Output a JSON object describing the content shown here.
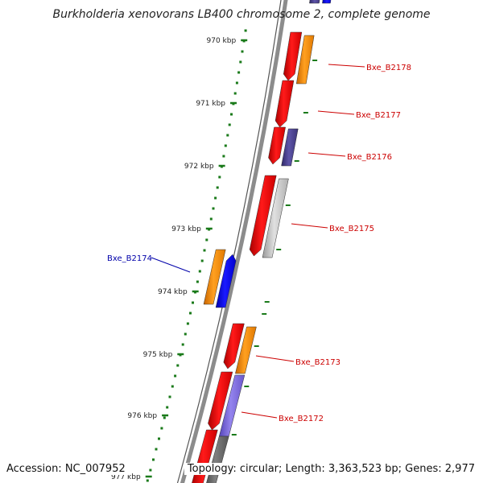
{
  "title": "Burkholderia xenovorans LB400 chromosome 2, complete genome",
  "footer": {
    "accession": "Accession: NC_007952",
    "topology": "Topology: circular; Length: 3,363,523 bp; Genes: 2,977"
  },
  "colors": {
    "backbone": "#8c8c8c",
    "tick": "#1a7a1a",
    "gene_label_forward": "#cc0000",
    "gene_label_reverse": "#0000aa",
    "red": "#ee0000",
    "orange": "#ff8c00",
    "navy": "#4a3f8a",
    "blue": "#0000ee",
    "lightgray": "#c8c8c8",
    "purple": "#7b68d8",
    "darkgray": "#666666"
  },
  "scale_labels": [
    "970 kbp",
    "971 kbp",
    "972 kbp",
    "973 kbp",
    "974 kbp",
    "975 kbp",
    "976 kbp",
    "977 kbp"
  ],
  "gene_labels": [
    {
      "text": "Bxe_B2178",
      "strand": "forward"
    },
    {
      "text": "Bxe_B2177",
      "strand": "forward"
    },
    {
      "text": "Bxe_B2176",
      "strand": "forward"
    },
    {
      "text": "Bxe_B2175",
      "strand": "forward"
    },
    {
      "text": "Bxe_B2174",
      "strand": "reverse"
    },
    {
      "text": "Bxe_B2173",
      "strand": "forward"
    },
    {
      "text": "Bxe_B2172",
      "strand": "forward"
    }
  ]
}
